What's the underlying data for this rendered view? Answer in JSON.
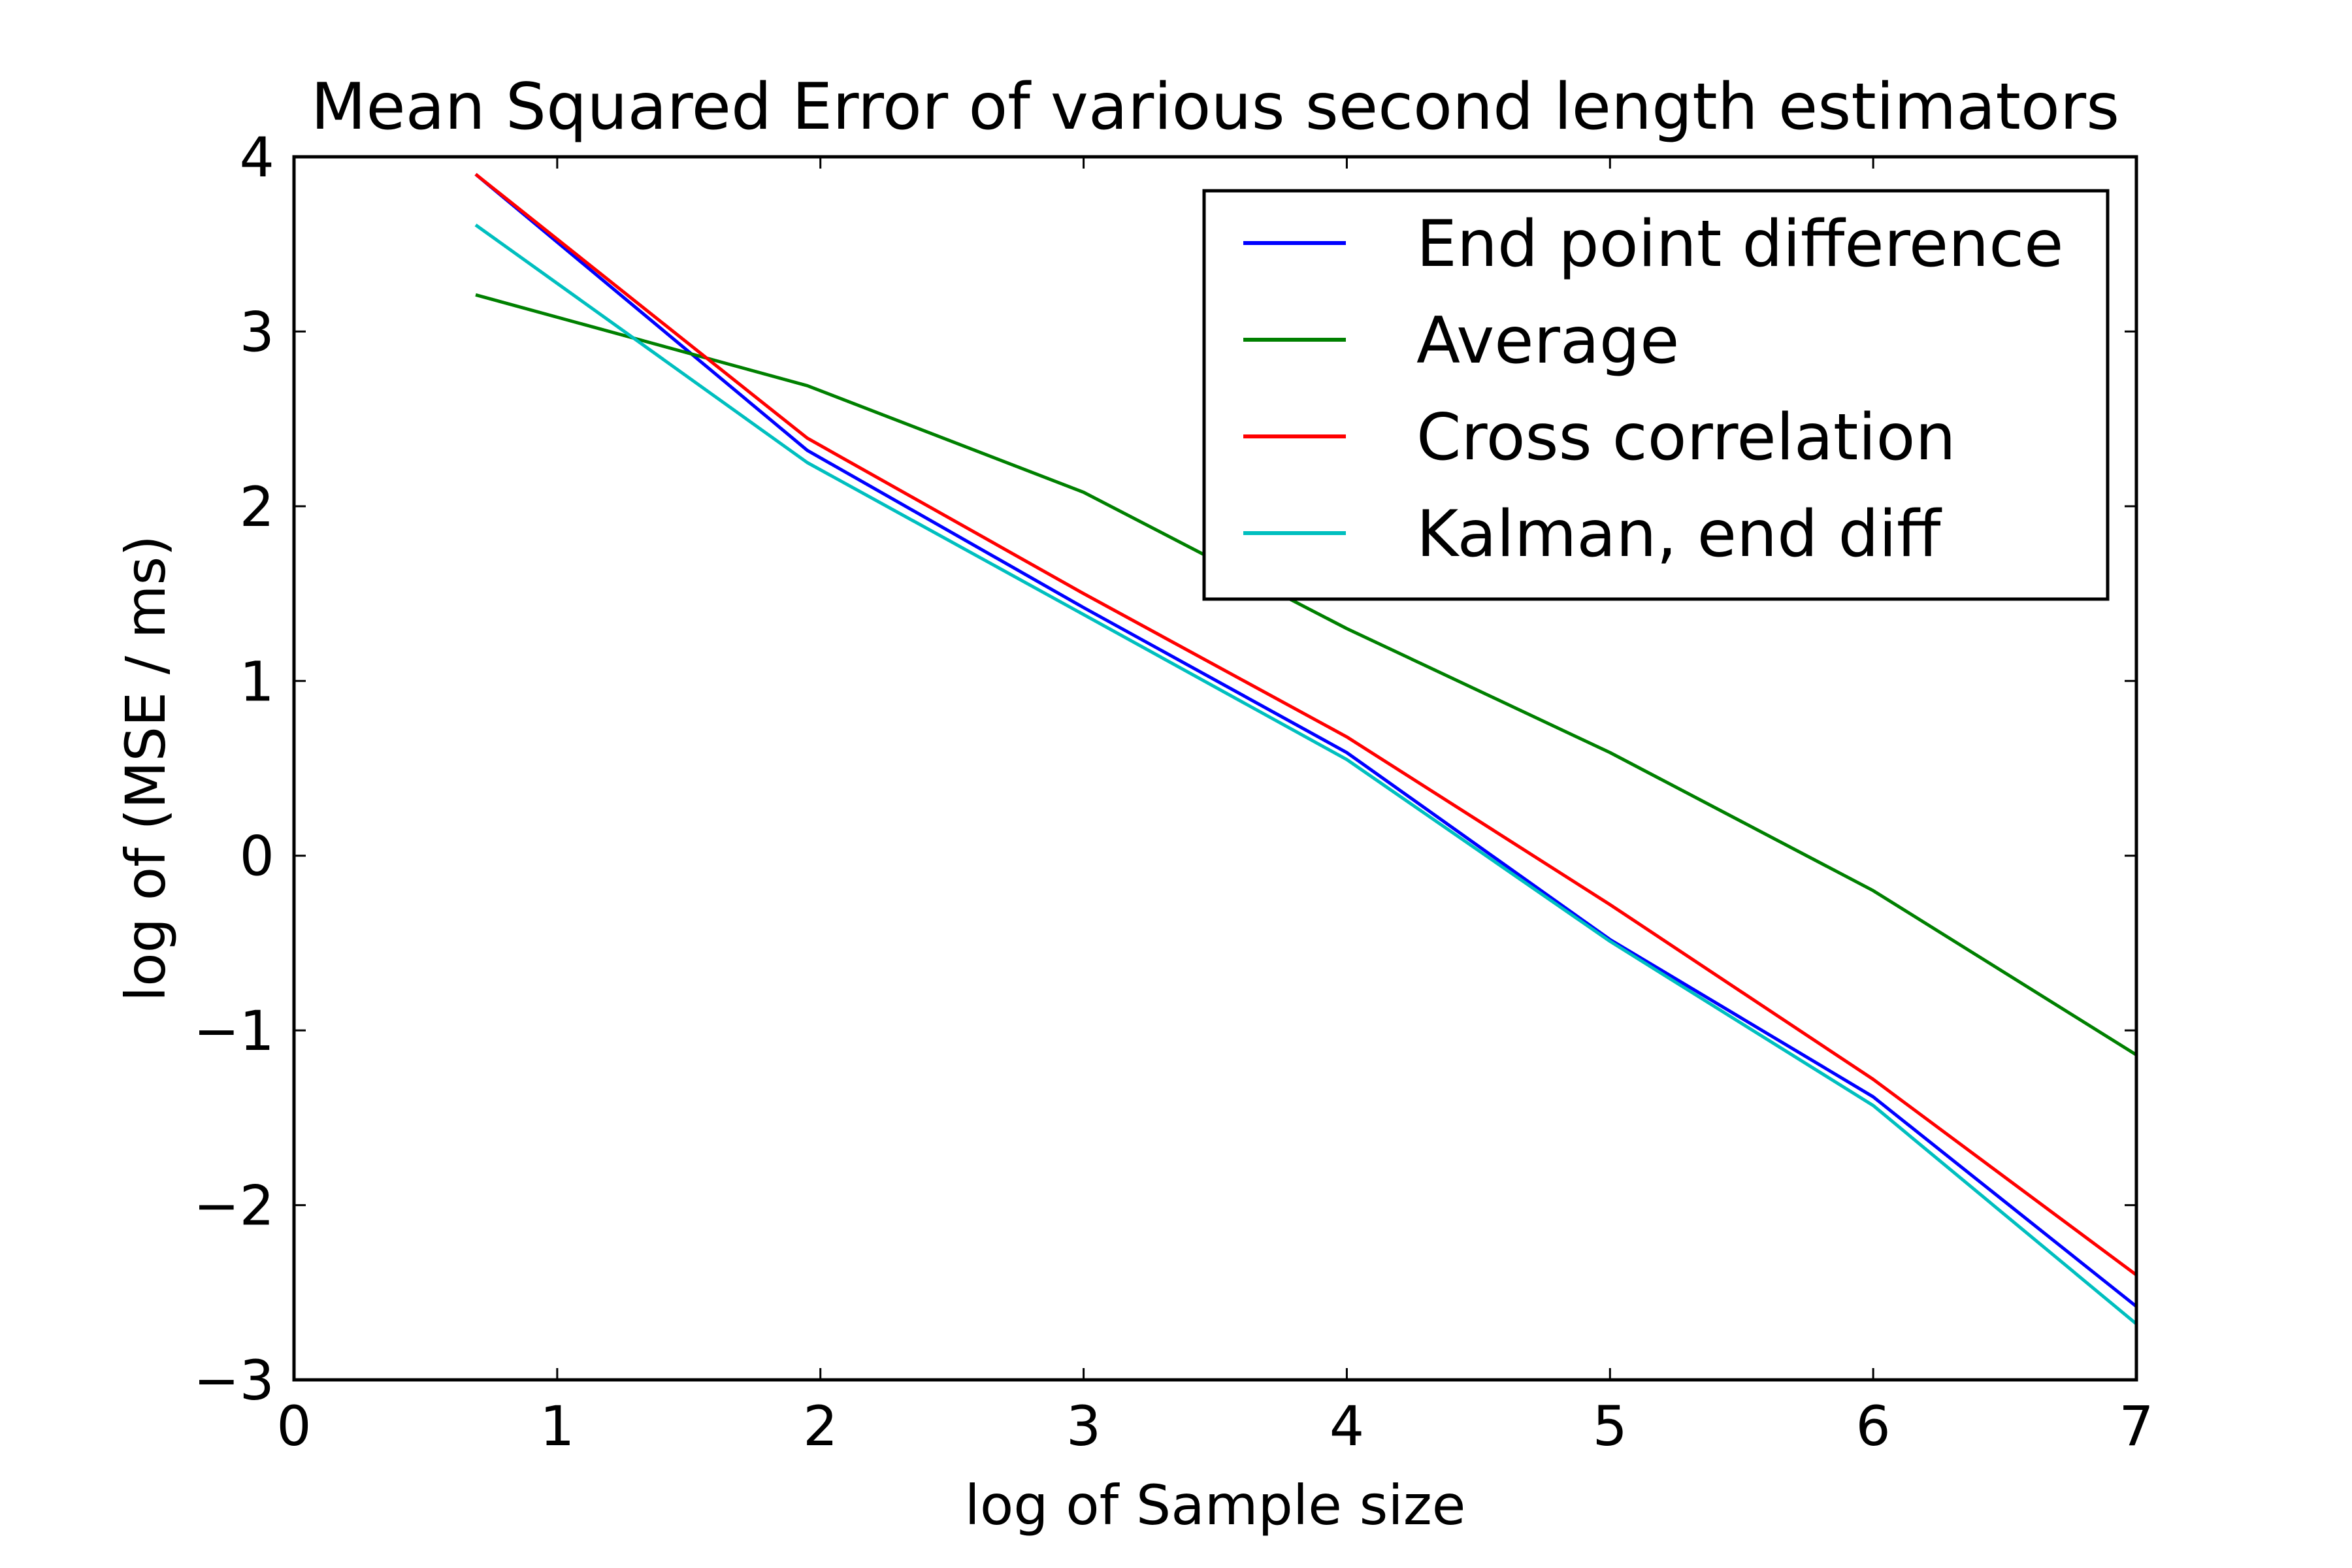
{
  "chart_data": {
    "type": "line",
    "title": "Mean Squared Error of various second length estimators",
    "xlabel": "log of Sample size",
    "ylabel": "log of (MSE / ms)",
    "xlim": [
      0,
      7
    ],
    "ylim": [
      -3,
      4
    ],
    "xticks": [
      "0",
      "1",
      "2",
      "3",
      "4",
      "5",
      "6",
      "7"
    ],
    "yticks": [
      "4",
      "3",
      "2",
      "1",
      "0",
      "−1",
      "−2",
      "−3"
    ],
    "grid": false,
    "legend_position": "top-right",
    "x": [
      0.69,
      1.95,
      3.0,
      4.0,
      5.0,
      6.0,
      7.0
    ],
    "series": [
      {
        "name": "End point difference",
        "color": "#0000ff",
        "values": [
          3.9,
          2.32,
          1.42,
          0.59,
          -0.48,
          -1.38,
          -2.58
        ]
      },
      {
        "name": "Average",
        "color": "#008000",
        "values": [
          3.21,
          2.69,
          2.08,
          1.3,
          0.59,
          -0.2,
          -1.14
        ]
      },
      {
        "name": "Cross correlation",
        "color": "#ff0000",
        "values": [
          3.9,
          2.39,
          1.5,
          0.68,
          -0.28,
          -1.28,
          -2.4
        ]
      },
      {
        "name": "Kalman, end diff",
        "color": "#00bfbf",
        "values": [
          3.61,
          2.25,
          1.38,
          0.55,
          -0.49,
          -1.43,
          -2.68
        ]
      }
    ]
  }
}
